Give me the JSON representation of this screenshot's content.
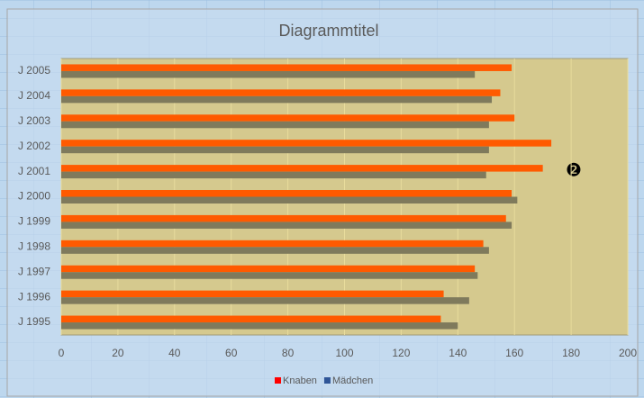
{
  "chart_data": {
    "type": "bar",
    "orientation": "horizontal",
    "title": "Diagrammtitel",
    "annotation": "❷",
    "categories": [
      "J 1995",
      "J 1996",
      "J 1997",
      "J 1998",
      "J 1999",
      "J 2000",
      "J 2001",
      "J 2002",
      "J 2003",
      "J 2004",
      "J 2005"
    ],
    "series": [
      {
        "name": "Knaben",
        "color": "#ff5a00",
        "legend_color": "#ff0000",
        "values": [
          134,
          135,
          146,
          149,
          157,
          159,
          170,
          173,
          160,
          155,
          159
        ]
      },
      {
        "name": "Mädchen",
        "color": "#7f7a5c",
        "legend_color": "#2f5597",
        "values": [
          140,
          144,
          147,
          151,
          159,
          161,
          150,
          151,
          151,
          152,
          146
        ]
      }
    ],
    "xlim": [
      0,
      200
    ],
    "xticks": [
      0,
      20,
      40,
      60,
      80,
      100,
      120,
      140,
      160,
      180,
      200
    ],
    "grid": true
  }
}
